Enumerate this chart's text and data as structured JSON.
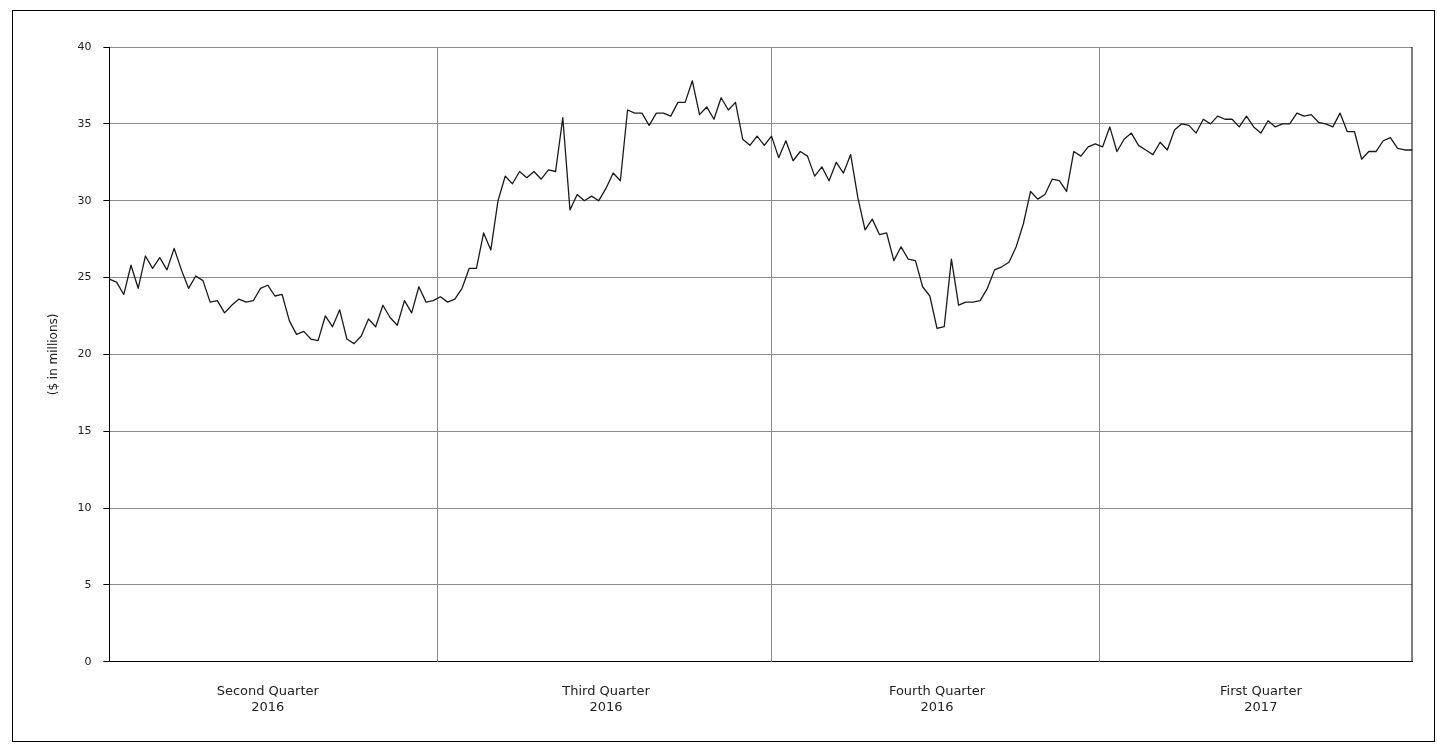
{
  "chart_data": {
    "type": "line",
    "ylabel": "($ in millions)",
    "grid": true,
    "legend": false,
    "marker": "none",
    "line_style": "solid",
    "categories": [
      null,
      null,
      null,
      null,
      null,
      null,
      null,
      null,
      null,
      null,
      null,
      null,
      null,
      null,
      null,
      null,
      null,
      null,
      null,
      null,
      null,
      null,
      "Second Quarter\n2016",
      null,
      null,
      null,
      null,
      null,
      null,
      null,
      null,
      null,
      null,
      null,
      null,
      null,
      null,
      null,
      null,
      null,
      null,
      null,
      null,
      null,
      null,
      null,
      null,
      null,
      null,
      null,
      null,
      null,
      null,
      null,
      null,
      null,
      null,
      null,
      null,
      null,
      null,
      null,
      null,
      null,
      null,
      null,
      null,
      null,
      null,
      "Third Quarter\n2016",
      null,
      null,
      null,
      null,
      null,
      null,
      null,
      null,
      null,
      null,
      null,
      null,
      null,
      null,
      null,
      null,
      null,
      null,
      null,
      null,
      null,
      null,
      null,
      null,
      null,
      null,
      null,
      null,
      null,
      null,
      null,
      null,
      null,
      null,
      null,
      null,
      null,
      null,
      null,
      null,
      null,
      null,
      null,
      null,
      null,
      "Fourth Quarter\n2016",
      null,
      null,
      null,
      null,
      null,
      null,
      null,
      null,
      null,
      null,
      null,
      null,
      null,
      null,
      null,
      null,
      null,
      null,
      null,
      null,
      null,
      null,
      null,
      null,
      null,
      null,
      null,
      null,
      null,
      null,
      null,
      null,
      null,
      null,
      null,
      null,
      null,
      null,
      null,
      null,
      null,
      null,
      null,
      null,
      "First Quarter\n2017",
      null,
      null,
      null,
      null,
      null,
      null,
      null,
      null,
      null,
      null,
      null,
      null,
      null,
      null,
      null,
      null,
      null,
      null,
      null,
      null,
      null
    ],
    "ylim": [
      0,
      40
    ],
    "yticks": [
      0,
      5,
      10,
      15,
      20,
      25,
      30,
      35,
      40
    ],
    "series": [
      {
        "color": "#1a1a1a",
        "values": [
          24.9,
          24.7,
          23.9,
          25.8,
          24.3,
          26.4,
          25.6,
          26.3,
          25.5,
          26.9,
          25.5,
          24.3,
          25.1,
          24.8,
          23.4,
          23.5,
          22.7,
          23.2,
          23.6,
          23.4,
          23.5,
          24.3,
          24.5,
          23.8,
          23.9,
          22.2,
          21.3,
          21.5,
          21.0,
          20.9,
          22.5,
          21.8,
          22.9,
          21.0,
          20.7,
          21.2,
          22.3,
          21.8,
          23.2,
          22.4,
          21.9,
          23.5,
          22.7,
          24.4,
          23.4,
          23.5,
          23.75,
          23.4,
          23.6,
          24.3,
          25.6,
          25.6,
          27.9,
          26.8,
          30.0,
          31.6,
          31.1,
          31.9,
          31.5,
          31.9,
          31.4,
          32.0,
          31.9,
          35.4,
          29.4,
          30.4,
          30.0,
          30.3,
          30.0,
          30.8,
          31.8,
          31.3,
          35.9,
          35.7,
          35.7,
          34.9,
          35.7,
          35.7,
          35.5,
          36.4,
          36.4,
          37.8,
          35.6,
          36.1,
          35.3,
          36.7,
          35.9,
          36.4,
          34.0,
          33.6,
          34.2,
          33.6,
          34.2,
          32.8,
          33.9,
          32.6,
          33.2,
          32.9,
          31.6,
          32.2,
          31.3,
          32.5,
          31.8,
          33.0,
          30.2,
          28.1,
          28.8,
          27.8,
          27.9,
          26.1,
          27.0,
          26.2,
          26.1,
          24.4,
          23.8,
          21.7,
          21.8,
          26.2,
          23.2,
          23.4,
          23.4,
          23.5,
          24.3,
          25.5,
          25.7,
          26.0,
          27.0,
          28.5,
          30.6,
          30.1,
          30.4,
          31.4,
          31.3,
          30.6,
          33.2,
          32.9,
          33.5,
          33.7,
          33.5,
          34.8,
          33.2,
          34.0,
          34.4,
          33.6,
          33.3,
          33.0,
          33.8,
          33.3,
          34.6,
          35.0,
          34.9,
          34.4,
          35.3,
          35.0,
          35.5,
          35.3,
          35.3,
          34.8,
          35.5,
          34.8,
          34.4,
          35.2,
          34.8,
          35.0,
          35.0,
          35.7,
          35.5,
          35.6,
          35.1,
          35.0,
          34.8,
          35.7,
          34.5,
          34.5,
          32.7,
          33.2,
          33.2,
          33.9,
          34.1,
          33.4,
          33.3,
          33.3
        ]
      }
    ]
  }
}
